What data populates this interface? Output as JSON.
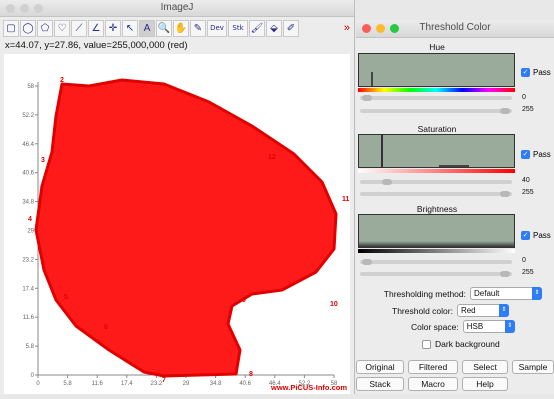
{
  "imagej": {
    "title": "ImageJ",
    "status": "x=44.07, y=27.86, value=255,000,000 (red)",
    "tools": [
      {
        "name": "rectangle-tool-icon",
        "glyph": "▢"
      },
      {
        "name": "oval-tool-icon",
        "glyph": "◯"
      },
      {
        "name": "polygon-tool-icon",
        "glyph": "⬠"
      },
      {
        "name": "freehand-tool-icon",
        "glyph": "♡"
      },
      {
        "name": "line-tool-icon",
        "glyph": "⟋"
      },
      {
        "name": "angle-tool-icon",
        "glyph": "∠"
      },
      {
        "name": "point-tool-icon",
        "glyph": "✛"
      },
      {
        "name": "wand-tool-icon",
        "glyph": "↖"
      },
      {
        "name": "text-tool-icon",
        "glyph": "A"
      },
      {
        "name": "magnifier-tool-icon",
        "glyph": "🔍"
      },
      {
        "name": "hand-tool-icon",
        "glyph": "✋"
      },
      {
        "name": "dropper-tool-icon",
        "glyph": "✎"
      },
      {
        "name": "dev-tool-icon",
        "glyph": "Dev"
      },
      {
        "name": "stk-tool-icon",
        "glyph": "Stk"
      },
      {
        "name": "brush-tool-icon",
        "glyph": "🖌"
      },
      {
        "name": "flood-fill-tool-icon",
        "glyph": "⬙"
      },
      {
        "name": "pencil-tool-icon",
        "glyph": "✐"
      }
    ],
    "more_tools": "»"
  },
  "plot": {
    "y_ticks": [
      "58",
      "52.2",
      "46.4",
      "40.6",
      "34.8",
      "29",
      "23.2",
      "17.4",
      "11.6",
      "5.8",
      "0"
    ],
    "x_ticks": [
      "0",
      "5.8",
      "11.6",
      "17.4",
      "23.2",
      "29",
      "34.8",
      "40.6",
      "46.4",
      "52.2",
      "58"
    ],
    "point_labels": [
      "2",
      "3",
      "4",
      "5",
      "6",
      "7",
      "8",
      "9",
      "10",
      "11",
      "12"
    ],
    "watermark": "www.PiCUS-Info.com"
  },
  "threshold": {
    "title": "Threshold Color",
    "hue": {
      "label": "Hue",
      "pass": "Pass",
      "min": "0",
      "max": "255"
    },
    "saturation": {
      "label": "Saturation",
      "pass": "Pass",
      "min": "40",
      "max": "255"
    },
    "brightness": {
      "label": "Brightness",
      "pass": "Pass",
      "min": "0",
      "max": "255"
    },
    "method_label": "Thresholding method:",
    "method_value": "Default",
    "color_label": "Threshold color:",
    "color_value": "Red",
    "space_label": "Color space:",
    "space_value": "HSB",
    "dark_bg": "Dark background",
    "buttons": [
      "Original",
      "Filtered",
      "Select",
      "Sample",
      "Stack",
      "Macro",
      "Help"
    ]
  },
  "colors": {
    "accent": "#2e7cf6",
    "shape": "#ff0000",
    "histogram": "#9aab9c"
  }
}
